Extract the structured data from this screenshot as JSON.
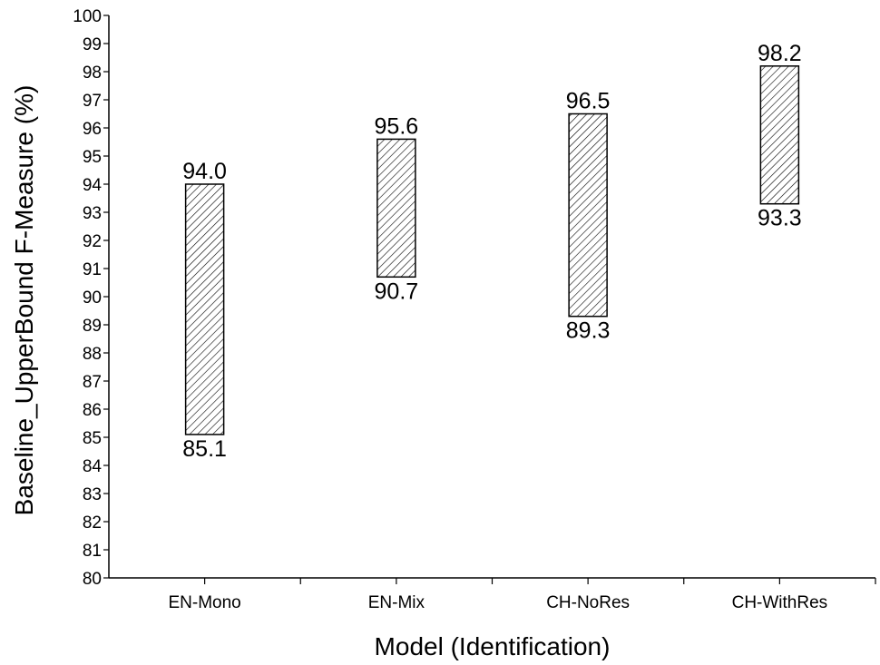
{
  "chart_data": {
    "type": "floating-bar",
    "xlabel": "Model (Identification)",
    "ylabel": "Baseline_UpperBound F-Measure (%)",
    "ylim": [
      80,
      100
    ],
    "ytick_step": 1,
    "grid": false,
    "legend": "none",
    "categories": [
      "EN-Mono",
      "EN-Mix",
      "CH-NoRes",
      "CH-WithRes"
    ],
    "series": [
      {
        "low": [
          85.1,
          90.7,
          89.3,
          93.3
        ],
        "high": [
          94.0,
          95.6,
          96.5,
          98.2
        ],
        "low_labels": [
          "85.1",
          "90.7",
          "89.3",
          "93.3"
        ],
        "high_labels": [
          "94.0",
          "95.6",
          "96.5",
          "98.2"
        ],
        "fill": "diagonal-hatch",
        "color": "#000000"
      }
    ]
  }
}
